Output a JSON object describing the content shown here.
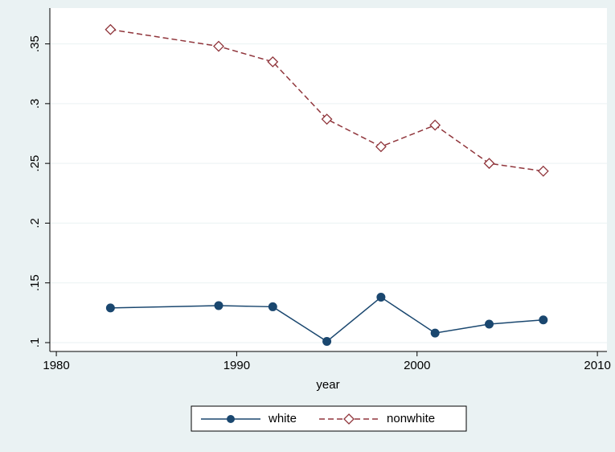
{
  "chart_data": {
    "type": "line",
    "x_label": "year",
    "x": [
      1983,
      1989,
      1992,
      1995,
      1998,
      2001,
      2004,
      2007
    ],
    "series": [
      {
        "name": "white",
        "color": "#1a476f",
        "marker": "circle",
        "linestyle": "solid",
        "values": [
          0.129,
          0.131,
          0.13,
          0.101,
          0.138,
          0.108,
          0.1155,
          0.119
        ]
      },
      {
        "name": "nonwhite",
        "color": "#90353b",
        "marker": "diamond",
        "linestyle": "dashed",
        "values": [
          0.362,
          0.348,
          0.335,
          0.287,
          0.264,
          0.282,
          0.25,
          0.2435
        ]
      }
    ],
    "xlim": [
      1979.64,
      2010.53
    ],
    "xticks": [
      1980,
      1990,
      2000,
      2010
    ],
    "ylim": [
      0.0926,
      0.38
    ],
    "yticks": [
      {
        "value": 0.1,
        "label": ".1"
      },
      {
        "value": 0.15,
        "label": ".15"
      },
      {
        "value": 0.2,
        "label": ".2"
      },
      {
        "value": 0.25,
        "label": ".25"
      },
      {
        "value": 0.3,
        "label": ".3"
      },
      {
        "value": 0.35,
        "label": ".35"
      }
    ],
    "grid": true,
    "legend": "bottom"
  }
}
